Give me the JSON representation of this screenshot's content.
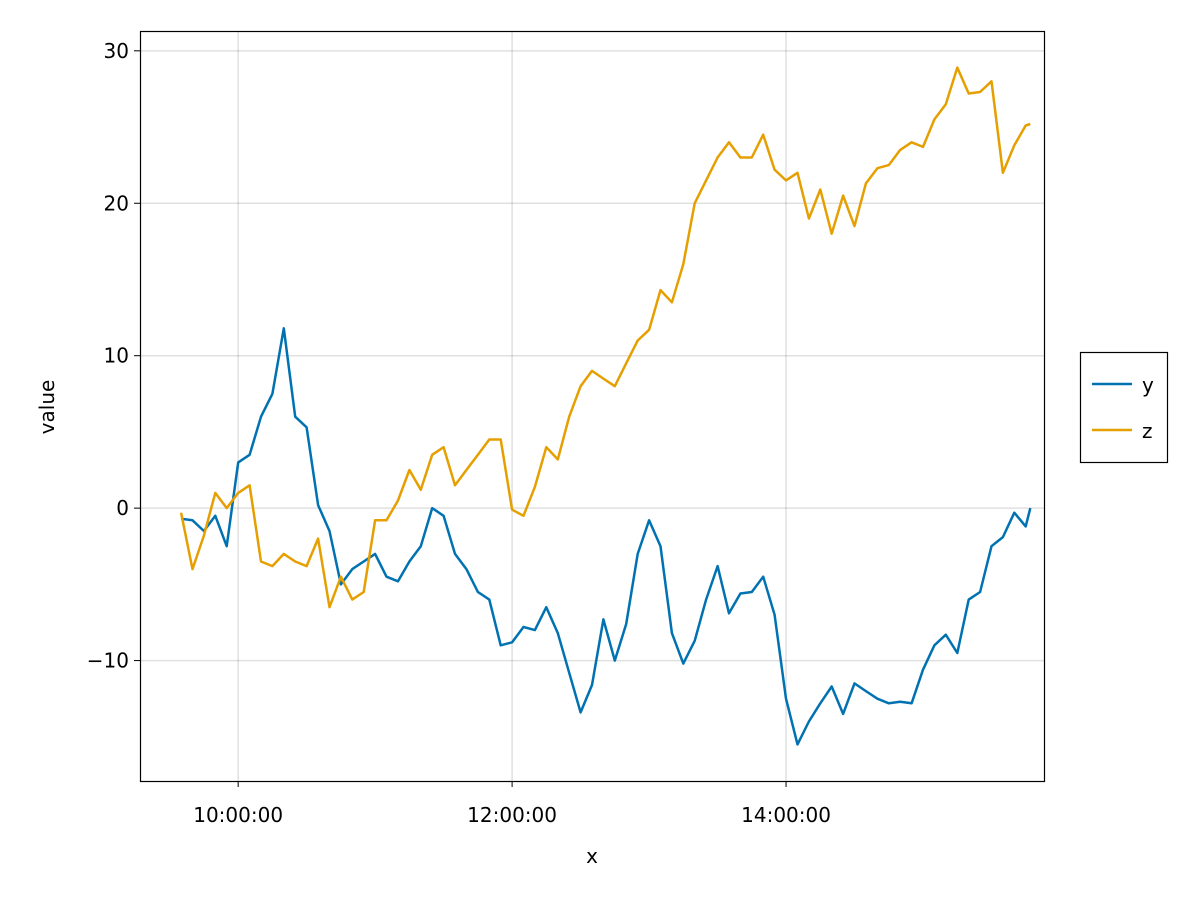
{
  "chart_data": {
    "type": "line",
    "title": "",
    "xlabel": "x",
    "ylabel": "value",
    "xlim": [
      "09:17",
      "15:53"
    ],
    "ylim": [
      -17.9,
      31.3
    ],
    "x_ticks": [
      "10:00:00",
      "12:00:00",
      "14:00:00"
    ],
    "y_ticks": [
      -10,
      0,
      10,
      20,
      30
    ],
    "y_tick_labels": [
      "−10",
      "0",
      "10",
      "20",
      "30"
    ],
    "grid": true,
    "legend_position": "right",
    "x": [
      "09:35",
      "09:40",
      "09:45",
      "09:50",
      "09:55",
      "10:00",
      "10:05",
      "10:10",
      "10:15",
      "10:20",
      "10:25",
      "10:30",
      "10:35",
      "10:40",
      "10:45",
      "10:50",
      "10:55",
      "11:00",
      "11:05",
      "11:10",
      "11:15",
      "11:20",
      "11:25",
      "11:30",
      "11:35",
      "11:40",
      "11:45",
      "11:50",
      "11:55",
      "12:00",
      "12:05",
      "12:10",
      "12:15",
      "12:20",
      "12:25",
      "12:30",
      "12:35",
      "12:40",
      "12:45",
      "12:50",
      "12:55",
      "13:00",
      "13:05",
      "13:10",
      "13:15",
      "13:20",
      "13:25",
      "13:30",
      "13:35",
      "13:40",
      "13:45",
      "13:50",
      "13:55",
      "14:00",
      "14:05",
      "14:10",
      "14:15",
      "14:20",
      "14:25",
      "14:30",
      "14:35",
      "14:40",
      "14:45",
      "14:50",
      "14:55",
      "15:00",
      "15:05",
      "15:10",
      "15:15",
      "15:20",
      "15:25",
      "15:30",
      "15:35",
      "15:40",
      "15:45",
      "15:47"
    ],
    "series": [
      {
        "name": "y",
        "color": "#0072b2",
        "values": [
          -0.7,
          -0.8,
          -1.5,
          -0.5,
          -2.5,
          3,
          3.5,
          6,
          7.5,
          11.8,
          6,
          5.3,
          0.2,
          -1.5,
          -5,
          -4,
          -3.5,
          -3,
          -4.5,
          -4.8,
          -3.5,
          -2.5,
          0,
          -0.5,
          -3,
          -4,
          -5.5,
          -6,
          -9,
          -8.8,
          -7.8,
          -8,
          -6.5,
          -8.2,
          -10.8,
          -13.4,
          -11.6,
          -7.3,
          -10,
          -7.6,
          -3,
          -0.8,
          -2.5,
          -8.2,
          -10.2,
          -8.7,
          -6,
          -3.8,
          -6.9,
          -5.6,
          -5.5,
          -4.5,
          -7,
          -12.5,
          -15.5,
          -14,
          -12.8,
          -11.7,
          -13.5,
          -11.5,
          -12,
          -12.5,
          -12.8,
          -12.7,
          -12.8,
          -10.6,
          -9,
          -8.3,
          -9.5,
          -6,
          -5.5,
          -2.5,
          -1.9,
          -0.3,
          -1.2,
          0
        ]
      },
      {
        "name": "z",
        "color": "#e69f00",
        "values": [
          -0.3,
          -4,
          -1.8,
          1,
          0,
          1,
          1.5,
          -3.5,
          -3.8,
          -3,
          -3.5,
          -3.8,
          -2,
          -6.5,
          -4.5,
          -6,
          -5.5,
          -0.8,
          -0.8,
          0.5,
          2.5,
          1.2,
          3.5,
          4,
          1.5,
          2.5,
          3.5,
          4.5,
          4.5,
          -0.1,
          -0.5,
          1.4,
          4,
          3.2,
          6,
          8,
          9,
          8.5,
          8,
          9.5,
          11,
          11.7,
          14.3,
          13.5,
          16,
          20,
          21.5,
          23,
          24,
          23,
          23,
          24.5,
          22.2,
          21.5,
          22,
          19,
          20.9,
          18,
          20.5,
          18.5,
          21.3,
          22.3,
          22.5,
          23.5,
          24,
          23.7,
          25.5,
          26.5,
          28.9,
          27.2,
          27.3,
          28,
          22,
          23.8,
          25.1,
          25.2
        ]
      }
    ]
  }
}
